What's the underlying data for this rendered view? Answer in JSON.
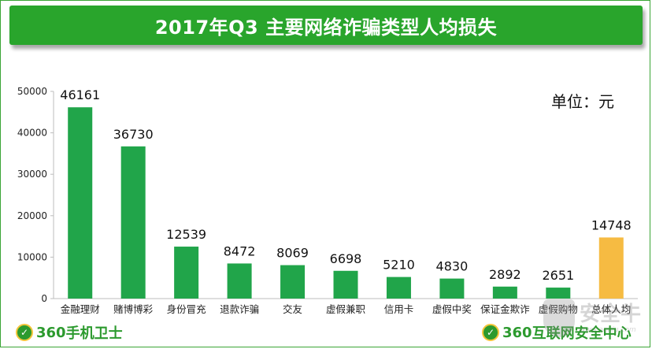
{
  "title": "2017年Q3 主要网络诈骗类型人均损失",
  "unit_label": "单位：元",
  "chart_data": {
    "type": "bar",
    "title": "2017年Q3 主要网络诈骗类型人均损失",
    "xlabel": "",
    "ylabel": "",
    "unit": "单位：元",
    "ylim": [
      0,
      50000
    ],
    "yticks": [
      0,
      10000,
      20000,
      30000,
      40000,
      50000
    ],
    "categories": [
      "金融理财",
      "赌博博彩",
      "身份冒充",
      "退款诈骗",
      "交友",
      "虚假兼职",
      "信用卡",
      "虚假中奖",
      "保证金欺诈",
      "虚假购物",
      "总体人均"
    ],
    "values": [
      46161,
      36730,
      12539,
      8472,
      8069,
      6698,
      5210,
      4830,
      2892,
      2651,
      14748
    ],
    "colors": [
      "#21a54a",
      "#21a54a",
      "#21a54a",
      "#21a54a",
      "#21a54a",
      "#21a54a",
      "#21a54a",
      "#21a54a",
      "#21a54a",
      "#21a54a",
      "#f6bb42"
    ],
    "grid": false,
    "legend": "none"
  },
  "logos": {
    "left": {
      "number": "360",
      "text": "手机卫士"
    },
    "right": {
      "number": "360",
      "text": "互联网安全中心"
    }
  },
  "watermark": {
    "text": "安全牛",
    "url": "www.aqniu.com"
  }
}
